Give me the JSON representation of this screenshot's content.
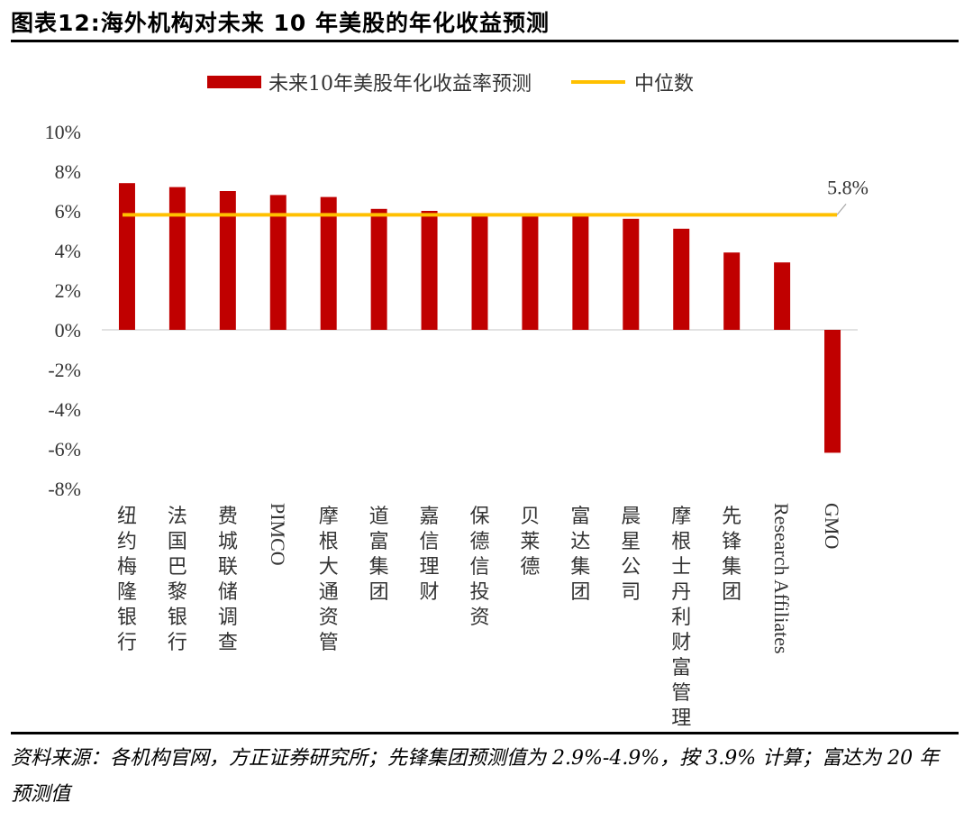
{
  "figure": {
    "title": "图表12:海外机构对未来 10 年美股的年化收益预测",
    "source": "资料来源：各机构官网，方正证券研究所；先锋集团预测值为 2.9%-4.9%，按 3.9% 计算；富达为 20 年预测值"
  },
  "legend": {
    "series_label": "未来10年美股年化收益率预测",
    "median_label": "中位数"
  },
  "colors": {
    "bar": "#c00000",
    "median": "#ffc000",
    "axis": "#d9d9d9",
    "text": "#595959"
  },
  "chart_data": {
    "type": "bar",
    "categories": [
      "纽约梅隆银行",
      "法国巴黎银行",
      "费城联储调查",
      "PIMCO",
      "摩根大通资管",
      "道富集团",
      "嘉信理财",
      "保德信投资",
      "贝莱德",
      "富达集团",
      "晨星公司",
      "摩根士丹利财富管理",
      "先锋集团",
      "Research Affiliates",
      "GMO"
    ],
    "values": [
      7.4,
      7.2,
      7.0,
      6.8,
      6.7,
      6.1,
      6.0,
      5.8,
      5.8,
      5.8,
      5.6,
      5.1,
      3.9,
      3.4,
      -6.2
    ],
    "median": 5.8,
    "median_label": "5.8%",
    "ylim": [
      -8,
      10
    ],
    "yticks": [
      "10%",
      "8%",
      "6%",
      "4%",
      "2%",
      "0%",
      "-2%",
      "-4%",
      "-6%",
      "-8%"
    ],
    "title": "",
    "xlabel": "",
    "ylabel": ""
  }
}
